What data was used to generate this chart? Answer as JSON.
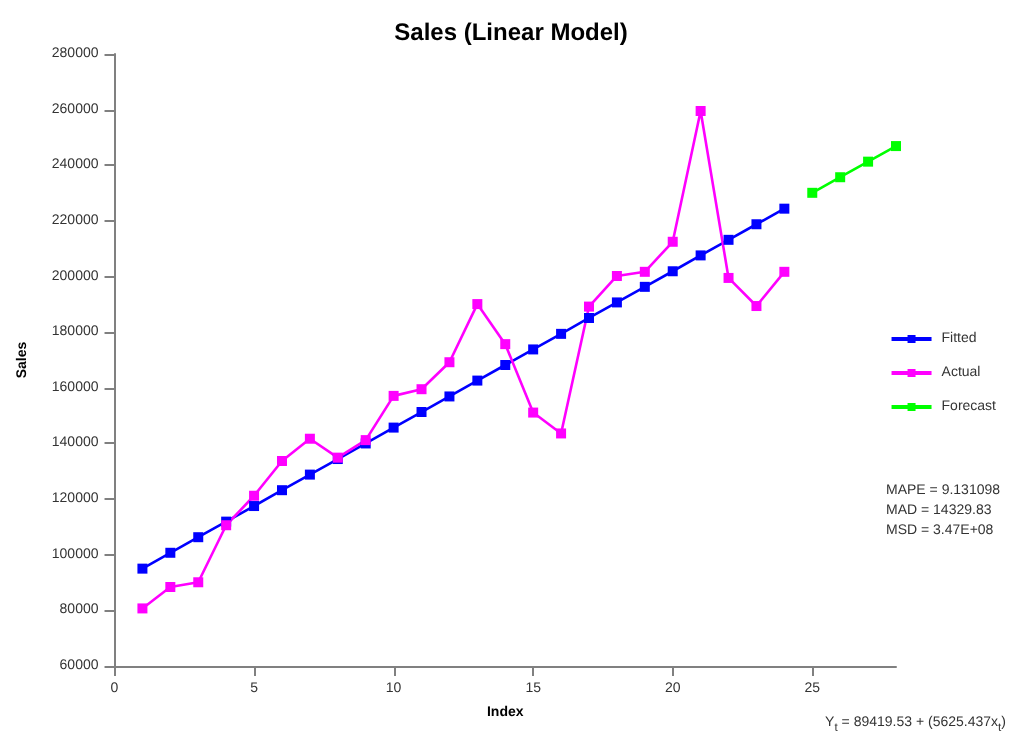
{
  "chart_data": {
    "type": "line",
    "title": "Sales (Linear Model)",
    "xlabel": "Index",
    "ylabel": "Sales",
    "series": [
      {
        "name": "Fitted",
        "color": "#0000ff",
        "x": [
          1,
          2,
          3,
          4,
          5,
          6,
          7,
          8,
          9,
          10,
          11,
          12,
          13,
          14,
          15,
          16,
          17,
          18,
          19,
          20,
          21,
          22,
          23,
          24
        ],
        "values": [
          95000,
          100700,
          106300,
          111900,
          117500,
          123200,
          128800,
          134400,
          140000,
          145700,
          151300,
          156900,
          162600,
          168200,
          173800,
          179400,
          185100,
          190700,
          196300,
          201900,
          207600,
          213200,
          218800,
          224400
        ]
      },
      {
        "name": "Actual",
        "color": "#ff00ff",
        "x": [
          1,
          2,
          3,
          4,
          5,
          6,
          7,
          8,
          9,
          10,
          11,
          12,
          13,
          14,
          15,
          16,
          17,
          18,
          19,
          20,
          21,
          22,
          23,
          24
        ],
        "values": [
          80700,
          88400,
          90100,
          110600,
          121200,
          133700,
          141700,
          134900,
          141200,
          157100,
          159500,
          169200,
          190100,
          175700,
          151100,
          143600,
          189200,
          200200,
          201700,
          212500,
          259500,
          199500,
          189400,
          201700
        ]
      },
      {
        "name": "Forecast",
        "color": "#00ff00",
        "x": [
          25,
          26,
          27,
          28
        ],
        "values": [
          230100,
          235700,
          241300,
          246900
        ]
      }
    ],
    "xlim": [
      0,
      28
    ],
    "xticks": [
      0,
      5,
      10,
      15,
      20,
      25
    ],
    "ylim": [
      60000,
      280000
    ],
    "yticks": [
      60000,
      80000,
      100000,
      120000,
      140000,
      160000,
      180000,
      200000,
      220000,
      240000,
      260000,
      280000
    ],
    "grid": false,
    "legend": "right",
    "marker": "square",
    "line_style": "solid",
    "annotations": [
      "MAPE = 9.131098\nMAD = 14329.83\nMSD = 3.47E+08",
      "Y$_{t}$ = 89419.53 + (5625.437x$_{t}$)"
    ]
  }
}
